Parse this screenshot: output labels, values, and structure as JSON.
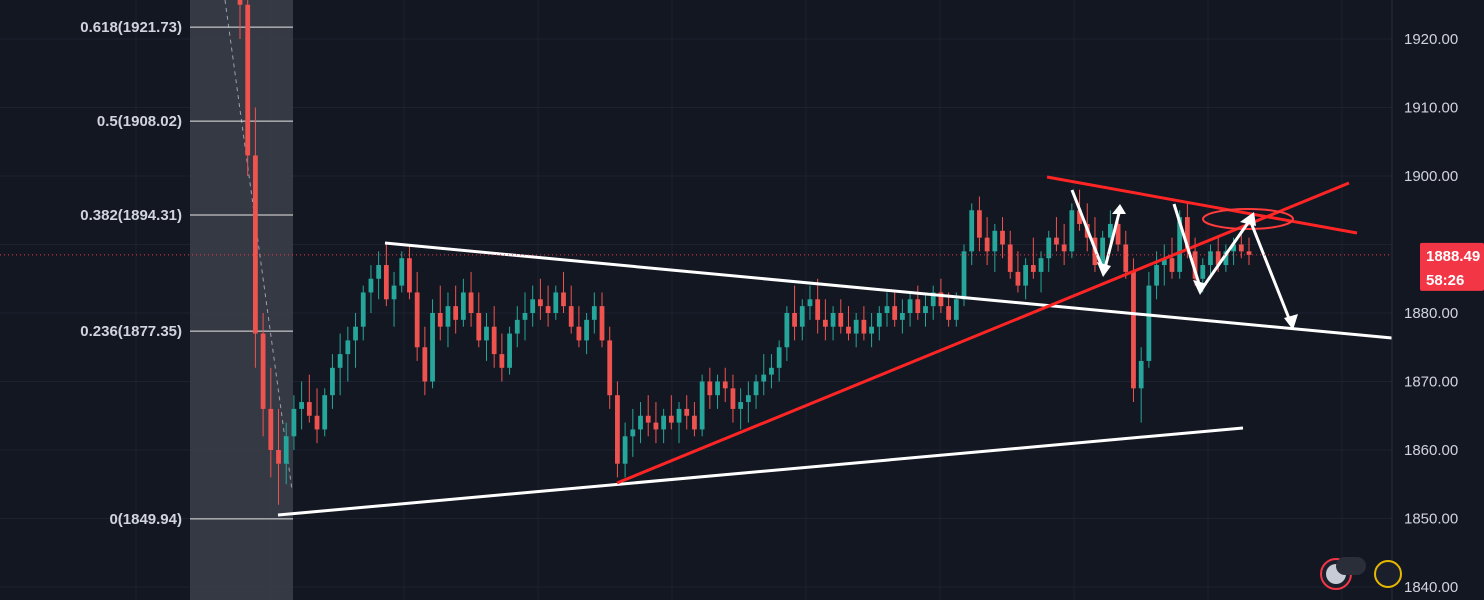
{
  "chart_data": {
    "type": "candlestick",
    "title": "",
    "xlabel": "",
    "ylabel": "",
    "ylim": [
      1838,
      1926
    ],
    "grid": true,
    "y_ticks": [
      "1920.00",
      "1910.00",
      "1900.00",
      "1890.00",
      "1880.00",
      "1870.00",
      "1860.00",
      "1850.00",
      "1840.00"
    ],
    "y_tick_values": [
      1920,
      1910,
      1900,
      1890,
      1880,
      1870,
      1860,
      1850,
      1840
    ],
    "fib_levels": [
      {
        "label": "0.618(1921.73)",
        "value": 1921.73
      },
      {
        "label": "0.5(1908.02)",
        "value": 1908.02
      },
      {
        "label": "0.382(1894.31)",
        "value": 1894.31
      },
      {
        "label": "0.236(1877.35)",
        "value": 1877.35
      },
      {
        "label": "0(1849.94)",
        "value": 1849.94
      }
    ],
    "last_price": {
      "label": "1888.49",
      "value": 1888.49
    },
    "countdown": "58:26",
    "candles": [
      [
        1940,
        1950,
        1920,
        1925
      ],
      [
        1925,
        1930,
        1900,
        1903
      ],
      [
        1903,
        1910,
        1872,
        1877
      ],
      [
        1877,
        1880,
        1862,
        1866
      ],
      [
        1866,
        1872,
        1856,
        1860
      ],
      [
        1860,
        1866,
        1852,
        1858
      ],
      [
        1858,
        1864,
        1855,
        1862
      ],
      [
        1862,
        1868,
        1860,
        1866
      ],
      [
        1866,
        1870,
        1863,
        1867
      ],
      [
        1867,
        1871,
        1864,
        1865
      ],
      [
        1865,
        1869,
        1861,
        1863
      ],
      [
        1863,
        1869,
        1862,
        1868
      ],
      [
        1868,
        1874,
        1866,
        1872
      ],
      [
        1872,
        1877,
        1868,
        1874
      ],
      [
        1874,
        1878,
        1870,
        1876
      ],
      [
        1876,
        1880,
        1872,
        1878
      ],
      [
        1878,
        1884,
        1876,
        1883
      ],
      [
        1883,
        1887,
        1880,
        1885
      ],
      [
        1885,
        1889,
        1882,
        1887
      ],
      [
        1887,
        1890,
        1881,
        1882
      ],
      [
        1882,
        1886,
        1878,
        1884
      ],
      [
        1884,
        1889,
        1883,
        1888
      ],
      [
        1888,
        1890,
        1882,
        1883
      ],
      [
        1883,
        1886,
        1873,
        1875
      ],
      [
        1875,
        1878,
        1868,
        1870
      ],
      [
        1870,
        1882,
        1869,
        1880
      ],
      [
        1880,
        1884,
        1876,
        1878
      ],
      [
        1878,
        1883,
        1875,
        1881
      ],
      [
        1881,
        1884,
        1877,
        1879
      ],
      [
        1879,
        1885,
        1878,
        1883
      ],
      [
        1883,
        1886,
        1878,
        1880
      ],
      [
        1880,
        1883,
        1875,
        1876
      ],
      [
        1876,
        1880,
        1873,
        1878
      ],
      [
        1878,
        1881,
        1872,
        1874
      ],
      [
        1874,
        1877,
        1870,
        1872
      ],
      [
        1872,
        1878,
        1871,
        1877
      ],
      [
        1877,
        1881,
        1875,
        1879
      ],
      [
        1879,
        1883,
        1876,
        1880
      ],
      [
        1880,
        1884,
        1878,
        1882
      ],
      [
        1882,
        1885,
        1879,
        1881
      ],
      [
        1881,
        1884,
        1878,
        1880
      ],
      [
        1880,
        1884,
        1879,
        1883
      ],
      [
        1883,
        1886,
        1880,
        1881
      ],
      [
        1881,
        1884,
        1877,
        1878
      ],
      [
        1878,
        1881,
        1875,
        1876
      ],
      [
        1876,
        1880,
        1874,
        1879
      ],
      [
        1879,
        1883,
        1877,
        1881
      ],
      [
        1881,
        1883,
        1875,
        1876
      ],
      [
        1876,
        1878,
        1866,
        1868
      ],
      [
        1868,
        1870,
        1856,
        1858
      ],
      [
        1858,
        1864,
        1856,
        1862
      ],
      [
        1862,
        1866,
        1859,
        1863
      ],
      [
        1863,
        1867,
        1861,
        1865
      ],
      [
        1865,
        1868,
        1862,
        1864
      ],
      [
        1864,
        1867,
        1861,
        1863
      ],
      [
        1863,
        1866,
        1861,
        1865
      ],
      [
        1865,
        1868,
        1863,
        1864
      ],
      [
        1864,
        1867,
        1861,
        1866
      ],
      [
        1866,
        1868,
        1863,
        1865
      ],
      [
        1865,
        1867,
        1862,
        1863
      ],
      [
        1863,
        1871,
        1862,
        1870
      ],
      [
        1870,
        1872,
        1866,
        1868
      ],
      [
        1868,
        1871,
        1866,
        1870
      ],
      [
        1870,
        1872,
        1867,
        1869
      ],
      [
        1869,
        1871,
        1864,
        1866
      ],
      [
        1866,
        1869,
        1863,
        1867
      ],
      [
        1867,
        1870,
        1864,
        1868
      ],
      [
        1868,
        1871,
        1866,
        1870
      ],
      [
        1870,
        1874,
        1868,
        1871
      ],
      [
        1871,
        1874,
        1869,
        1872
      ],
      [
        1872,
        1876,
        1870,
        1875
      ],
      [
        1875,
        1881,
        1873,
        1880
      ],
      [
        1880,
        1884,
        1876,
        1878
      ],
      [
        1878,
        1882,
        1876,
        1881
      ],
      [
        1881,
        1884,
        1879,
        1882
      ],
      [
        1882,
        1885,
        1877,
        1879
      ],
      [
        1879,
        1882,
        1876,
        1878
      ],
      [
        1878,
        1881,
        1876,
        1880
      ],
      [
        1880,
        1882,
        1877,
        1878
      ],
      [
        1878,
        1881,
        1876,
        1877
      ],
      [
        1877,
        1880,
        1875,
        1879
      ],
      [
        1879,
        1881,
        1876,
        1877
      ],
      [
        1877,
        1880,
        1875,
        1878
      ],
      [
        1878,
        1881,
        1876,
        1880
      ],
      [
        1880,
        1883,
        1878,
        1881
      ],
      [
        1881,
        1883,
        1878,
        1879
      ],
      [
        1879,
        1882,
        1877,
        1880
      ],
      [
        1880,
        1883,
        1878,
        1882
      ],
      [
        1882,
        1884,
        1879,
        1880
      ],
      [
        1880,
        1883,
        1878,
        1881
      ],
      [
        1881,
        1884,
        1879,
        1883
      ],
      [
        1883,
        1885,
        1880,
        1881
      ],
      [
        1881,
        1883,
        1878,
        1879
      ],
      [
        1879,
        1883,
        1878,
        1882
      ],
      [
        1882,
        1890,
        1881,
        1889
      ],
      [
        1889,
        1896,
        1887,
        1895
      ],
      [
        1895,
        1897,
        1889,
        1891
      ],
      [
        1891,
        1894,
        1887,
        1889
      ],
      [
        1889,
        1893,
        1886,
        1892
      ],
      [
        1892,
        1894,
        1888,
        1890
      ],
      [
        1890,
        1892,
        1885,
        1886
      ],
      [
        1886,
        1889,
        1883,
        1884
      ],
      [
        1884,
        1888,
        1882,
        1887
      ],
      [
        1887,
        1891,
        1885,
        1886
      ],
      [
        1886,
        1889,
        1883,
        1888
      ],
      [
        1888,
        1892,
        1886,
        1891
      ],
      [
        1891,
        1894,
        1889,
        1890
      ],
      [
        1890,
        1893,
        1887,
        1889
      ],
      [
        1889,
        1896,
        1888,
        1895
      ],
      [
        1895,
        1898,
        1892,
        1893
      ],
      [
        1893,
        1896,
        1889,
        1891
      ],
      [
        1891,
        1894,
        1886,
        1887
      ],
      [
        1887,
        1892,
        1886,
        1891
      ],
      [
        1891,
        1895,
        1889,
        1893
      ],
      [
        1893,
        1895,
        1889,
        1890
      ],
      [
        1890,
        1892,
        1885,
        1886
      ],
      [
        1886,
        1888,
        1867,
        1869
      ],
      [
        1869,
        1875,
        1864,
        1873
      ],
      [
        1873,
        1886,
        1872,
        1884
      ],
      [
        1884,
        1889,
        1882,
        1887
      ],
      [
        1887,
        1890,
        1884,
        1888
      ],
      [
        1888,
        1891,
        1885,
        1886
      ],
      [
        1886,
        1895,
        1885,
        1894
      ],
      [
        1894,
        1896,
        1888,
        1889
      ],
      [
        1889,
        1891,
        1884,
        1885
      ],
      [
        1885,
        1888,
        1883,
        1887
      ],
      [
        1887,
        1890,
        1885,
        1889
      ],
      [
        1889,
        1891,
        1886,
        1887
      ],
      [
        1887,
        1890,
        1886,
        1889
      ],
      [
        1889,
        1891,
        1887,
        1890
      ],
      [
        1890,
        1892,
        1888,
        1889
      ],
      [
        1889,
        1891,
        1887,
        1888.49
      ]
    ]
  },
  "colors": {
    "background": "#131722",
    "up": "#26a69a",
    "down": "#ef5350",
    "grid": "#1e2230",
    "text": "#d1d4dc",
    "fib_zone": "#3a3d47",
    "fib_line": "#e6e6e6",
    "trend_white": "#ffffff",
    "trend_red": "#ff2525",
    "price_badge": "#f23645",
    "price_line": "#f23645"
  }
}
